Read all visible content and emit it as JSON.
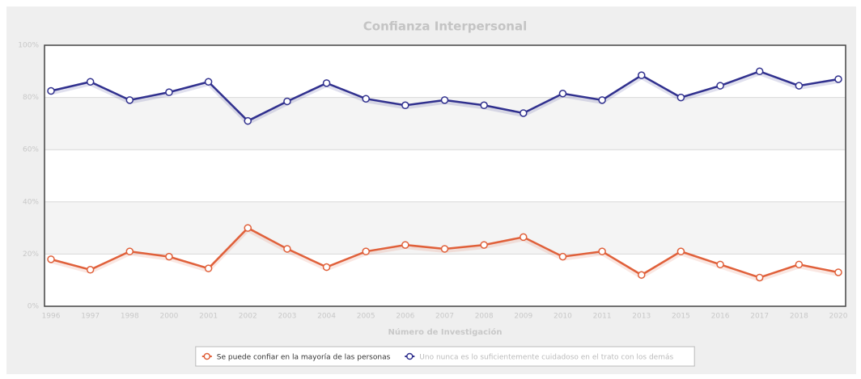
{
  "chart_data": {
    "type": "line",
    "title": "Confianza Interpersonal",
    "x_label": "Número de Investigación",
    "categories": [
      "1996",
      "1997",
      "1998",
      "2000",
      "2001",
      "2002",
      "2003",
      "2004",
      "2005",
      "2006",
      "2007",
      "2008",
      "2009",
      "2010",
      "2011",
      "2013",
      "2015",
      "2016",
      "2017",
      "2018",
      "2020"
    ],
    "series": [
      {
        "name": "Se puede confiar en la mayoría de las personas",
        "color": "#e0603a",
        "values": [
          18,
          14,
          21,
          19,
          14.5,
          30,
          22,
          15,
          21,
          23.5,
          22,
          23.5,
          26.5,
          19,
          21,
          12,
          21,
          16,
          11,
          16,
          13
        ]
      },
      {
        "name": "Uno nunca es lo suficientemente cuidadoso en el trato con los demás",
        "color": "#30308e",
        "values": [
          82.5,
          86,
          79,
          82,
          86,
          71,
          78.5,
          85.5,
          79.5,
          77,
          79,
          77,
          74,
          81.5,
          79,
          88.5,
          80,
          84.5,
          90,
          84.5,
          87
        ]
      }
    ],
    "ylim": [
      0,
      100
    ],
    "yticks": [
      {
        "value": 0,
        "label": "0%"
      },
      {
        "value": 20,
        "label": "20%"
      },
      {
        "value": 40,
        "label": "40%"
      },
      {
        "value": 60,
        "label": "60%"
      },
      {
        "value": 80,
        "label": "80%"
      },
      {
        "value": 100,
        "label": "100%"
      }
    ],
    "grid": true,
    "legend": "bottom"
  }
}
